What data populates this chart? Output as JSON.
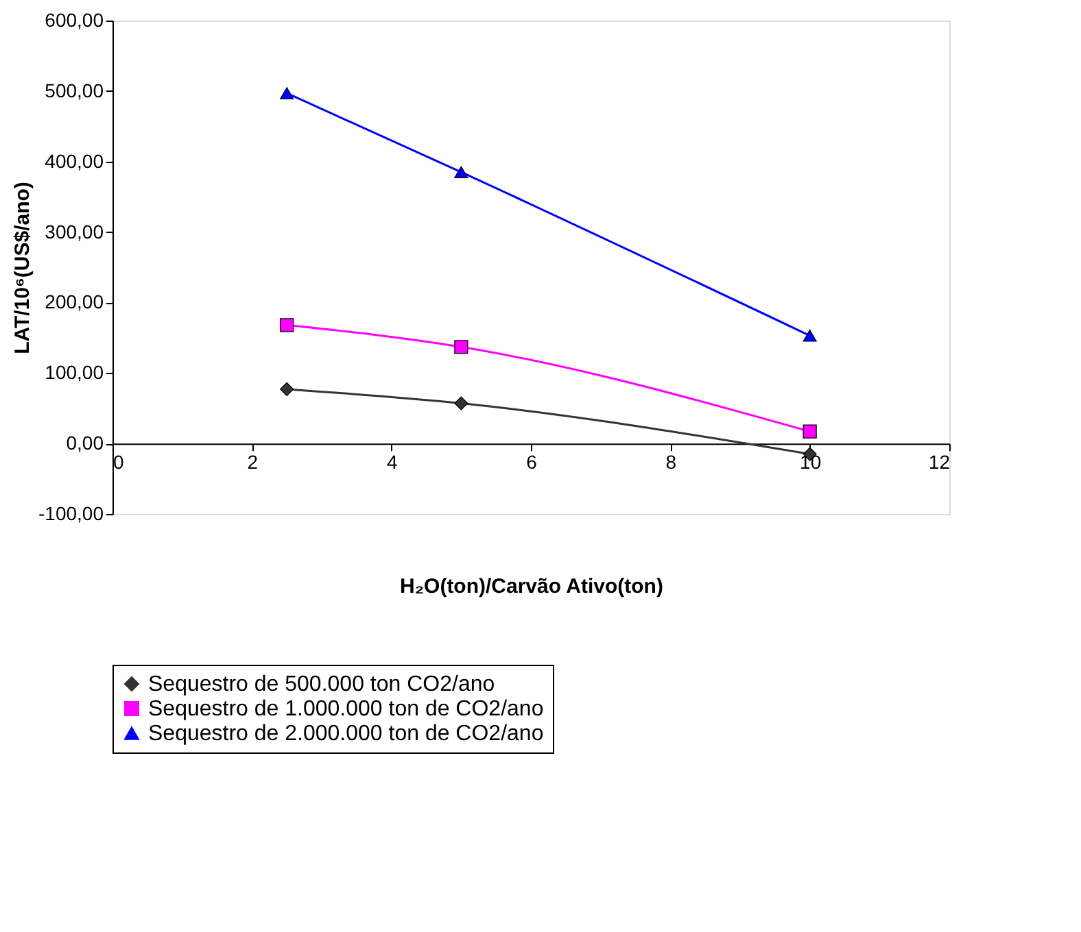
{
  "chart_data": {
    "type": "line",
    "xlabel": "H₂O(ton)/Carvão Ativo(ton)",
    "ylabel": "LAT/10⁶(US$/ano)",
    "x": [
      2.5,
      5,
      10
    ],
    "series": [
      {
        "name": "Sequestro de 500.000 ton CO2/ano",
        "color": "#333333",
        "marker": "diamond",
        "values": [
          77,
          57,
          -15
        ]
      },
      {
        "name": "Sequestro de 1.000.000 ton de CO2/ano",
        "color": "#ff00ff",
        "marker": "square",
        "values": [
          168,
          137,
          17
        ]
      },
      {
        "name": "Sequestro de 2.000.000 ton de CO2/ano",
        "color": "#0000ff",
        "marker": "triangle",
        "values": [
          497,
          385,
          153
        ]
      }
    ],
    "xlim": [
      0,
      12
    ],
    "xticks": [
      0,
      2,
      4,
      6,
      8,
      10,
      12
    ],
    "ylim": [
      -100,
      600
    ],
    "yticks": [
      {
        "value": -100,
        "label": "-100,00"
      },
      {
        "value": 0,
        "label": "0,00"
      },
      {
        "value": 100,
        "label": "100,00"
      },
      {
        "value": 200,
        "label": "200,00"
      },
      {
        "value": 300,
        "label": "300,00"
      },
      {
        "value": 400,
        "label": "400,00"
      },
      {
        "value": 500,
        "label": "500,00"
      },
      {
        "value": 600,
        "label": "600,00"
      }
    ],
    "grid": false,
    "legend": "bottom",
    "line_style": "solid"
  }
}
